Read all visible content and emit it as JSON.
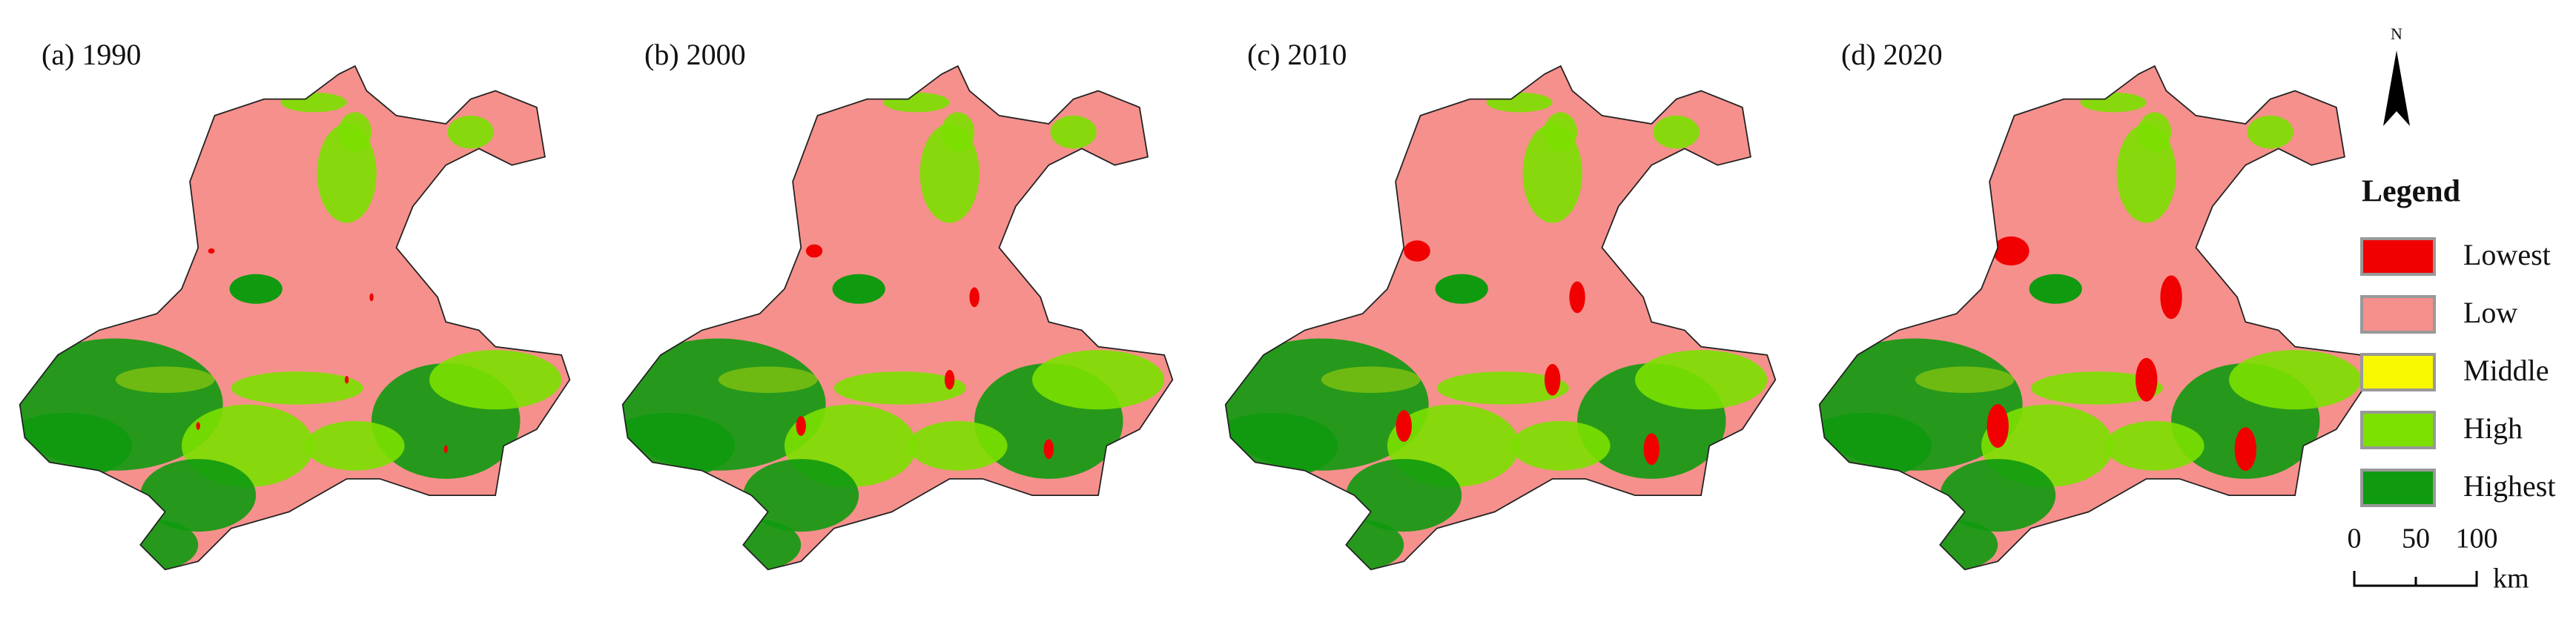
{
  "panels": [
    {
      "label": "(a) 1990"
    },
    {
      "label": "(b) 2000"
    },
    {
      "label": "(c) 2010"
    },
    {
      "label": "(d) 2020"
    }
  ],
  "north": "N",
  "legend": {
    "title": "Legend",
    "items": [
      {
        "label": "Lowest",
        "color": "#f00000"
      },
      {
        "label": "Low",
        "color": "#f6908c"
      },
      {
        "label": "Middle",
        "color": "#f8f800"
      },
      {
        "label": "High",
        "color": "#7ce000"
      },
      {
        "label": "Highest",
        "color": "#109a10"
      }
    ]
  },
  "scale": {
    "ticks": [
      "0",
      "50",
      "100"
    ],
    "unit": "km"
  }
}
